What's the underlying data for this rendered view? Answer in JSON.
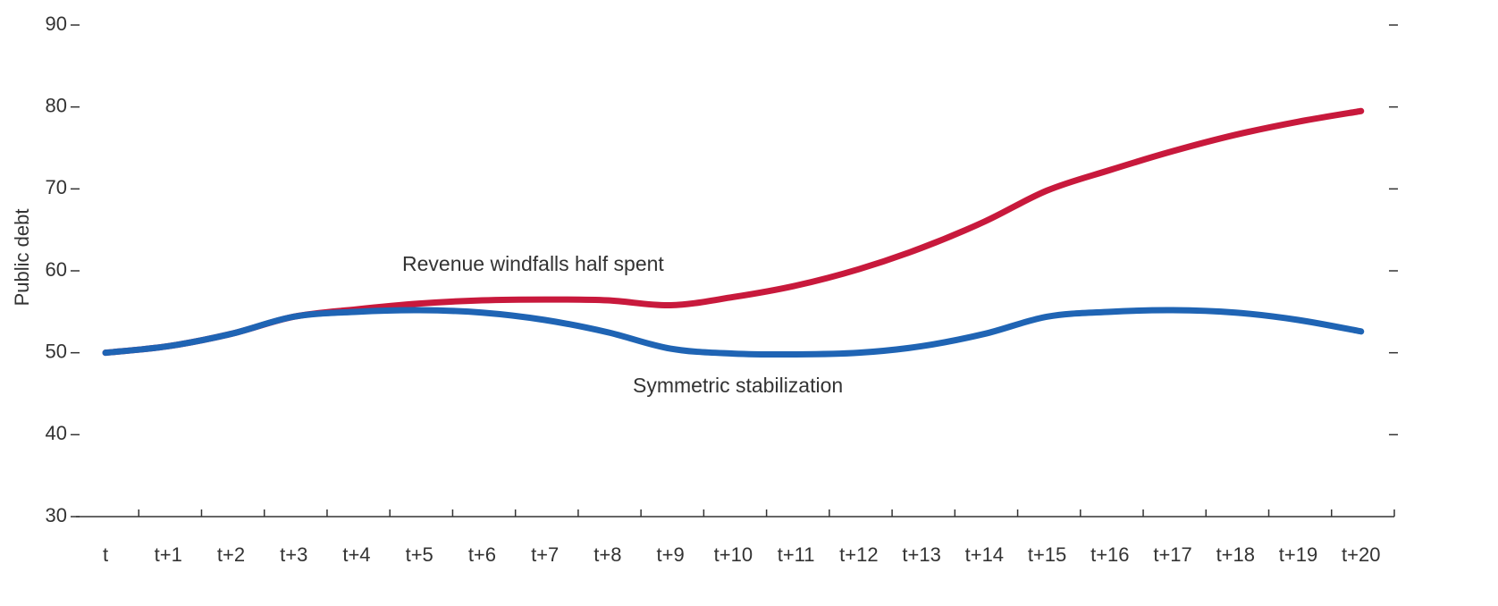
{
  "chart_data": {
    "type": "line",
    "y_label": "Public debt",
    "categories": [
      "t",
      "t+1",
      "t+2",
      "t+3",
      "t+4",
      "t+5",
      "t+6",
      "t+7",
      "t+8",
      "t+9",
      "t+10",
      "t+11",
      "t+12",
      "t+13",
      "t+14",
      "t+15",
      "t+16",
      "t+17",
      "t+18",
      "t+19",
      "t+20"
    ],
    "series": [
      {
        "name": "Revenue windfalls half spent",
        "color": "#c8193c",
        "values": [
          50,
          50.8,
          52.3,
          54.4,
          55.3,
          56,
          56.4,
          56.5,
          56.4,
          55.8,
          56.8,
          58.2,
          60.2,
          62.8,
          66,
          69.8,
          72.3,
          74.6,
          76.6,
          78.2,
          79.5
        ]
      },
      {
        "name": "Symmetric stabilization",
        "color": "#1f64b4",
        "values": [
          50,
          50.8,
          52.3,
          54.4,
          55,
          55.2,
          54.9,
          54,
          52.5,
          50.5,
          49.9,
          49.8,
          50,
          50.8,
          52.3,
          54.4,
          55,
          55.2,
          54.9,
          54,
          52.6
        ]
      }
    ],
    "ylim": [
      30,
      90
    ],
    "yticks": [
      30,
      40,
      50,
      60,
      70,
      80,
      90
    ]
  }
}
